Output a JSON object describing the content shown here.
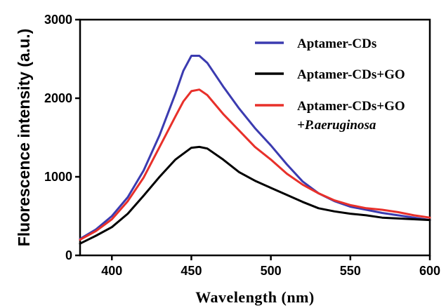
{
  "chart_data": {
    "type": "line",
    "xlabel": "Wavelength (nm)",
    "ylabel": "Fluorescence intensity (a.u.)",
    "xlim": [
      380,
      600
    ],
    "ylim": [
      0,
      3000
    ],
    "x_ticks": [
      "400",
      "450",
      "500",
      "550",
      "600"
    ],
    "y_ticks": [
      "0",
      "1000",
      "2000",
      "3000"
    ],
    "x_tick_values": [
      400,
      450,
      500,
      550,
      600
    ],
    "y_tick_values": [
      0,
      1000,
      2000,
      3000
    ],
    "legend_position": "top-right",
    "series": [
      {
        "name": "Aptamer-CDs",
        "color": "#3b3bb0",
        "x": [
          380,
          390,
          400,
          410,
          420,
          430,
          440,
          445,
          450,
          455,
          460,
          470,
          480,
          490,
          500,
          510,
          520,
          530,
          540,
          550,
          560,
          570,
          580,
          590,
          600
        ],
        "y": [
          210,
          330,
          500,
          740,
          1080,
          1530,
          2060,
          2350,
          2540,
          2540,
          2450,
          2150,
          1870,
          1620,
          1400,
          1160,
          940,
          790,
          690,
          620,
          580,
          540,
          510,
          480,
          450
        ]
      },
      {
        "name": "Aptamer-CDs+GO",
        "color": "#000000",
        "x": [
          380,
          390,
          400,
          410,
          420,
          430,
          440,
          450,
          455,
          460,
          470,
          480,
          490,
          500,
          510,
          520,
          530,
          540,
          550,
          560,
          570,
          580,
          590,
          600
        ],
        "y": [
          150,
          250,
          360,
          530,
          760,
          1000,
          1220,
          1370,
          1380,
          1360,
          1220,
          1060,
          950,
          860,
          770,
          680,
          600,
          560,
          530,
          510,
          480,
          470,
          460,
          450
        ]
      },
      {
        "name": "Aptamer-CDs+GO",
        "name_line2": "+P.aeruginosa",
        "color": "#e8302a",
        "x": [
          380,
          390,
          400,
          410,
          420,
          430,
          440,
          445,
          450,
          455,
          460,
          470,
          480,
          490,
          500,
          510,
          520,
          530,
          540,
          550,
          560,
          570,
          580,
          590,
          600
        ],
        "y": [
          200,
          310,
          460,
          690,
          990,
          1380,
          1770,
          1960,
          2090,
          2110,
          2040,
          1800,
          1590,
          1380,
          1220,
          1040,
          900,
          790,
          700,
          640,
          600,
          580,
          550,
          510,
          480
        ]
      }
    ]
  }
}
